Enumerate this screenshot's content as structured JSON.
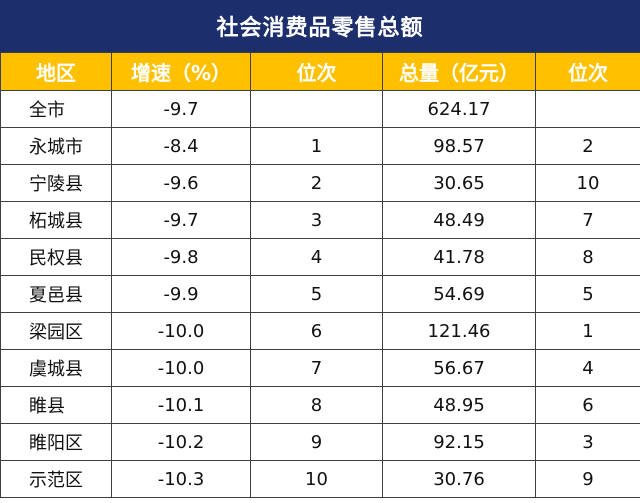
{
  "chart_data": {
    "type": "table",
    "title": "社会消费品零售总额",
    "columns": [
      "地区",
      "增速（%）",
      "位次",
      "总量（亿元）",
      "位次"
    ],
    "rows": [
      [
        "全市",
        "-9.7",
        "",
        "624.17",
        ""
      ],
      [
        "永城市",
        "-8.4",
        "1",
        "98.57",
        "2"
      ],
      [
        "宁陵县",
        "-9.6",
        "2",
        "30.65",
        "10"
      ],
      [
        "柘城县",
        "-9.7",
        "3",
        "48.49",
        "7"
      ],
      [
        "民权县",
        "-9.8",
        "4",
        "41.78",
        "8"
      ],
      [
        "夏邑县",
        "-9.9",
        "5",
        "54.69",
        "5"
      ],
      [
        "梁园区",
        "-10.0",
        "6",
        "121.46",
        "1"
      ],
      [
        "虞城县",
        "-10.0",
        "7",
        "56.67",
        "4"
      ],
      [
        "睢县",
        "-10.1",
        "8",
        "48.95",
        "6"
      ],
      [
        "睢阳区",
        "-10.2",
        "9",
        "92.15",
        "3"
      ],
      [
        "示范区",
        "-10.3",
        "10",
        "30.76",
        "9"
      ]
    ]
  },
  "colors": {
    "title_bg": "#1c2f6c",
    "header_bg": "#ffc000",
    "header_text": "#ffffff",
    "border": "#404040"
  }
}
